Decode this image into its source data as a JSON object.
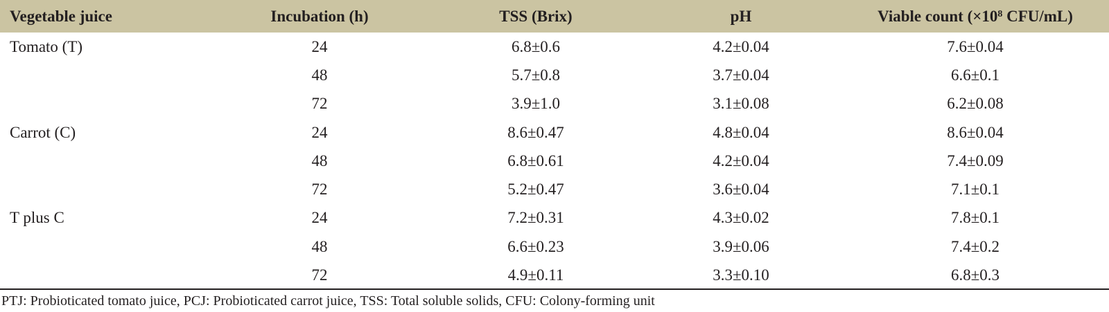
{
  "table": {
    "headers": {
      "vegetable": "Vegetable juice",
      "incubation": "Incubation (h)",
      "tss": "TSS (Brix)",
      "ph": "pH",
      "viable_prefix": "Viable count (×10",
      "viable_sup": "8",
      "viable_suffix": " CFU/mL)"
    },
    "rows": [
      {
        "juice": "Tomato (T)",
        "incubation": "24",
        "tss": "6.8±0.6",
        "ph": "4.2±0.04",
        "viable": "7.6±0.04"
      },
      {
        "juice": "",
        "incubation": "48",
        "tss": "5.7±0.8",
        "ph": "3.7±0.04",
        "viable": "6.6±0.1"
      },
      {
        "juice": "",
        "incubation": "72",
        "tss": "3.9±1.0",
        "ph": "3.1±0.08",
        "viable": "6.2±0.08"
      },
      {
        "juice": "Carrot (C)",
        "incubation": "24",
        "tss": "8.6±0.47",
        "ph": "4.8±0.04",
        "viable": "8.6±0.04"
      },
      {
        "juice": "",
        "incubation": "48",
        "tss": "6.8±0.61",
        "ph": "4.2±0.04",
        "viable": "7.4±0.09"
      },
      {
        "juice": "",
        "incubation": "72",
        "tss": "5.2±0.47",
        "ph": "3.6±0.04",
        "viable": "7.1±0.1"
      },
      {
        "juice": "T plus C",
        "incubation": "24",
        "tss": "7.2±0.31",
        "ph": "4.3±0.02",
        "viable": "7.8±0.1"
      },
      {
        "juice": "",
        "incubation": "48",
        "tss": "6.6±0.23",
        "ph": "3.9±0.06",
        "viable": "7.4±0.2"
      },
      {
        "juice": "",
        "incubation": "72",
        "tss": "4.9±0.11",
        "ph": "3.3±0.10",
        "viable": "6.8±0.3"
      }
    ],
    "footnote": "PTJ: Probioticated tomato juice, PCJ: Probioticated carrot juice, TSS: Total soluble solids, CFU: Colony-forming unit"
  },
  "colors": {
    "header_bg": "#cbc4a2",
    "text": "#231f20"
  }
}
